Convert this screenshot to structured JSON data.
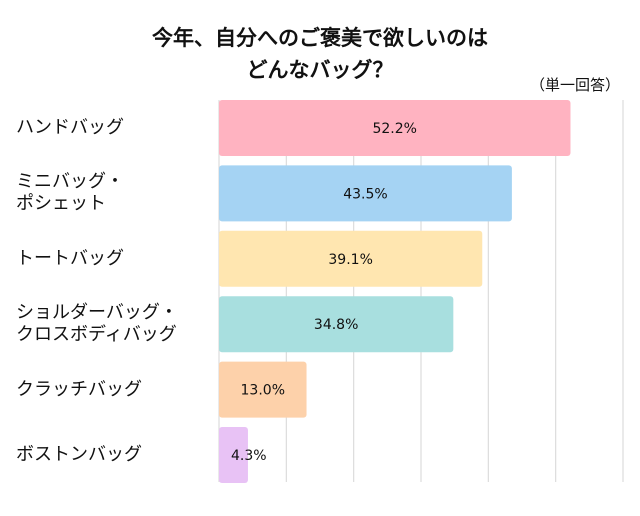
{
  "chart_data": {
    "type": "bar",
    "orientation": "horizontal",
    "title": [
      "今年、自分へのご褒美で欲しいのは",
      "どんなバッグ？"
    ],
    "note": "（単一回答）",
    "categories": [
      [
        "ハンドバッグ"
      ],
      [
        "ミニバッグ・",
        "ポシェット"
      ],
      [
        "トートバッグ"
      ],
      [
        "ショルダーバッグ・",
        "クロスボディバッグ"
      ],
      [
        "クラッチバッグ"
      ],
      [
        "ボストンバッグ"
      ]
    ],
    "values": [
      52.2,
      43.5,
      39.1,
      34.8,
      13.0,
      4.3
    ],
    "labels": [
      "52.2%",
      "43.5%",
      "39.1%",
      "34.8%",
      "13.0%",
      "4.3%"
    ],
    "colors": [
      "#ffb3c1",
      "#a5d3f3",
      "#ffe6b0",
      "#a8dfdf",
      "#fdd1aa",
      "#e8c2f5"
    ],
    "xlim": [
      0,
      60
    ],
    "grid_step": 10,
    "grid": true,
    "unit": "%"
  }
}
